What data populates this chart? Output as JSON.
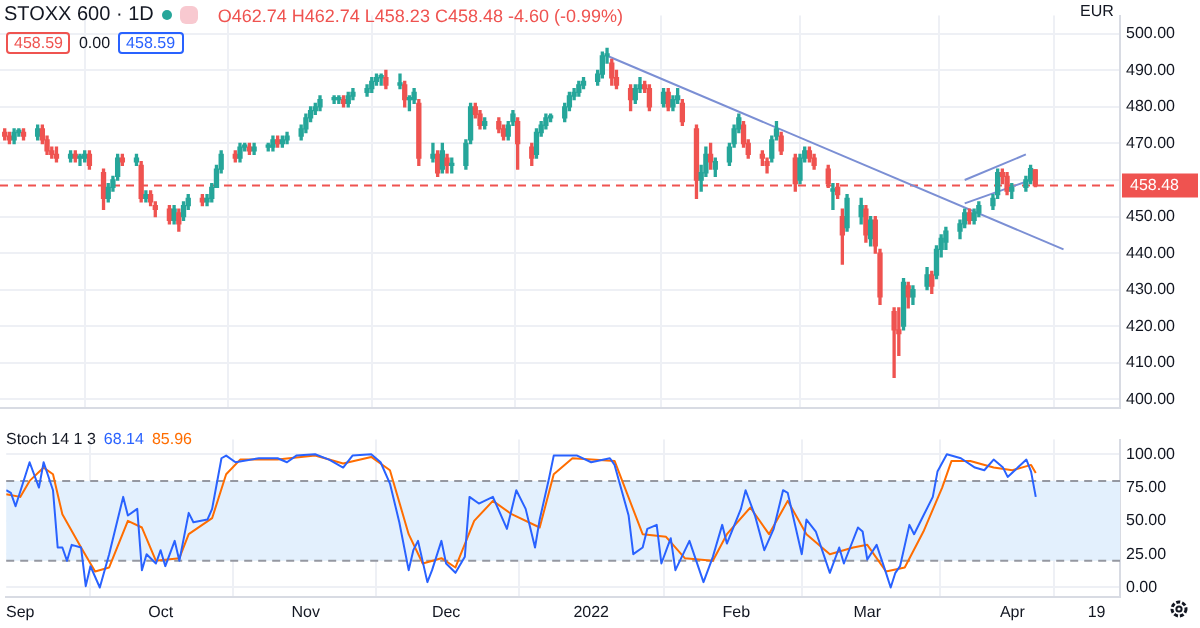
{
  "chart_data": [
    {
      "type": "candlestick",
      "title": "STOXX 600 · 1D",
      "annotations": [
        "O462.74 H462.74 L458.23 C458.48 -4.60 (-0.99%)",
        "458.59",
        "0.00",
        "458.59",
        "EUR"
      ],
      "x": [
        "2021-08-30",
        "2021-08-31",
        "2021-09-01",
        "2021-09-02",
        "2021-09-03",
        "2021-09-06",
        "2021-09-07",
        "2021-09-08",
        "2021-09-09",
        "2021-09-10",
        "2021-09-13",
        "2021-09-14",
        "2021-09-15",
        "2021-09-16",
        "2021-09-17",
        "2021-09-20",
        "2021-09-21",
        "2021-09-22",
        "2021-09-23",
        "2021-09-24",
        "2021-09-27",
        "2021-09-28",
        "2021-09-29",
        "2021-09-30",
        "2021-10-01",
        "2021-10-04",
        "2021-10-05",
        "2021-10-06",
        "2021-10-07",
        "2021-10-08",
        "2021-10-11",
        "2021-10-12",
        "2021-10-13",
        "2021-10-14",
        "2021-10-15",
        "2021-10-18",
        "2021-10-19",
        "2021-10-20",
        "2021-10-21",
        "2021-10-22",
        "2021-10-25",
        "2021-10-26",
        "2021-10-27",
        "2021-10-28",
        "2021-10-29",
        "2021-11-01",
        "2021-11-02",
        "2021-11-03",
        "2021-11-04",
        "2021-11-05",
        "2021-11-08",
        "2021-11-09",
        "2021-11-10",
        "2021-11-11",
        "2021-11-12",
        "2021-11-15",
        "2021-11-16",
        "2021-11-17",
        "2021-11-18",
        "2021-11-19",
        "2021-11-22",
        "2021-11-23",
        "2021-11-24",
        "2021-11-25",
        "2021-11-26",
        "2021-11-29",
        "2021-11-30",
        "2021-12-01",
        "2021-12-02",
        "2021-12-03",
        "2021-12-06",
        "2021-12-07",
        "2021-12-08",
        "2021-12-09",
        "2021-12-10",
        "2021-12-13",
        "2021-12-14",
        "2021-12-15",
        "2021-12-16",
        "2021-12-17",
        "2021-12-20",
        "2021-12-21",
        "2021-12-22",
        "2021-12-23",
        "2021-12-24",
        "2021-12-27",
        "2021-12-28",
        "2021-12-29",
        "2021-12-30",
        "2021-12-31",
        "2022-01-03",
        "2022-01-04",
        "2022-01-05",
        "2022-01-06",
        "2022-01-07",
        "2022-01-10",
        "2022-01-11",
        "2022-01-12",
        "2022-01-13",
        "2022-01-14",
        "2022-01-17",
        "2022-01-18",
        "2022-01-19",
        "2022-01-20",
        "2022-01-21",
        "2022-01-24",
        "2022-01-25",
        "2022-01-26",
        "2022-01-27",
        "2022-01-28",
        "2022-01-31",
        "2022-02-01",
        "2022-02-02",
        "2022-02-03",
        "2022-02-04",
        "2022-02-07",
        "2022-02-08",
        "2022-02-09",
        "2022-02-10",
        "2022-02-11",
        "2022-02-14",
        "2022-02-15",
        "2022-02-16",
        "2022-02-17",
        "2022-02-18",
        "2022-02-21",
        "2022-02-22",
        "2022-02-23",
        "2022-02-24",
        "2022-02-25",
        "2022-02-28",
        "2022-03-01",
        "2022-03-02",
        "2022-03-03",
        "2022-03-04",
        "2022-03-07",
        "2022-03-08",
        "2022-03-09",
        "2022-03-10",
        "2022-03-11",
        "2022-03-14",
        "2022-03-15",
        "2022-03-16",
        "2022-03-17",
        "2022-03-18",
        "2022-03-21",
        "2022-03-22",
        "2022-03-23",
        "2022-03-24",
        "2022-03-25",
        "2022-03-28",
        "2022-03-29",
        "2022-03-30",
        "2022-03-31",
        "2022-04-01",
        "2022-04-04",
        "2022-04-05",
        "2022-04-06"
      ],
      "ohlc": [
        [
          473,
          474,
          471,
          472
        ],
        [
          472,
          473,
          470,
          471
        ],
        [
          471,
          474,
          470,
          473
        ],
        [
          473,
          474,
          472,
          473
        ],
        [
          473,
          474,
          471,
          472
        ],
        [
          472,
          475,
          471,
          474
        ],
        [
          474,
          475,
          470,
          471
        ],
        [
          471,
          472,
          467,
          468
        ],
        [
          468,
          469,
          466,
          467
        ],
        [
          467,
          469,
          465,
          466
        ],
        [
          466,
          468,
          465,
          467
        ],
        [
          467,
          468,
          465,
          466
        ],
        [
          466,
          467,
          464,
          466
        ],
        [
          466,
          468,
          465,
          467
        ],
        [
          467,
          468,
          463,
          464
        ],
        [
          462,
          463,
          452,
          455
        ],
        [
          455,
          459,
          454,
          458
        ],
        [
          458,
          461,
          457,
          460
        ],
        [
          461,
          467,
          460,
          466
        ],
        [
          466,
          467,
          464,
          465
        ],
        [
          465,
          467,
          464,
          466
        ],
        [
          464,
          465,
          454,
          455
        ],
        [
          455,
          457,
          454,
          456
        ],
        [
          456,
          457,
          453,
          454
        ],
        [
          453,
          454,
          450,
          452
        ],
        [
          452,
          453,
          448,
          449
        ],
        [
          449,
          453,
          448,
          452
        ],
        [
          451,
          452,
          446,
          448
        ],
        [
          450,
          454,
          449,
          453
        ],
        [
          453,
          456,
          452,
          455
        ],
        [
          455,
          456,
          453,
          454
        ],
        [
          454,
          456,
          453,
          455
        ],
        [
          455,
          459,
          454,
          458
        ],
        [
          458,
          464,
          458,
          463
        ],
        [
          463,
          468,
          462,
          467
        ],
        [
          467,
          468,
          465,
          466
        ],
        [
          466,
          470,
          465,
          469
        ],
        [
          469,
          470,
          468,
          469
        ],
        [
          469,
          470,
          467,
          468
        ],
        [
          468,
          470,
          467,
          469
        ],
        [
          469,
          470,
          468,
          469
        ],
        [
          469,
          472,
          468,
          471
        ],
        [
          471,
          472,
          469,
          470
        ],
        [
          470,
          472,
          469,
          471
        ],
        [
          471,
          473,
          470,
          472
        ],
        [
          472,
          475,
          471,
          474
        ],
        [
          474,
          478,
          473,
          477
        ],
        [
          477,
          480,
          476,
          479
        ],
        [
          479,
          481,
          478,
          480
        ],
        [
          480,
          483,
          479,
          482
        ],
        [
          482,
          483,
          481,
          482
        ],
        [
          482,
          483,
          481,
          482
        ],
        [
          482,
          483,
          480,
          481
        ],
        [
          481,
          484,
          480,
          483
        ],
        [
          483,
          485,
          482,
          484
        ],
        [
          484,
          486,
          483,
          485
        ],
        [
          485,
          488,
          484,
          487
        ],
        [
          487,
          489,
          486,
          488
        ],
        [
          488,
          489,
          486,
          488
        ],
        [
          488,
          490,
          485,
          486
        ],
        [
          486,
          489,
          485,
          486
        ],
        [
          486,
          487,
          480,
          482
        ],
        [
          482,
          483,
          479,
          482
        ],
        [
          482,
          485,
          481,
          484
        ],
        [
          481,
          482,
          464,
          466
        ],
        [
          466,
          470,
          465,
          467
        ],
        [
          467,
          468,
          461,
          462
        ],
        [
          463,
          470,
          462,
          468
        ],
        [
          466,
          467,
          462,
          464
        ],
        [
          464,
          466,
          462,
          464
        ],
        [
          464,
          471,
          463,
          470
        ],
        [
          471,
          481,
          470,
          480
        ],
        [
          480,
          481,
          477,
          478
        ],
        [
          478,
          479,
          474,
          475
        ],
        [
          475,
          477,
          474,
          476
        ],
        [
          476,
          477,
          473,
          474
        ],
        [
          474,
          475,
          471,
          472
        ],
        [
          472,
          476,
          471,
          475
        ],
        [
          476,
          479,
          475,
          478
        ],
        [
          476,
          477,
          463,
          470
        ],
        [
          469,
          470,
          464,
          466
        ],
        [
          467,
          474,
          466,
          473
        ],
        [
          473,
          476,
          472,
          475
        ],
        [
          475,
          478,
          474,
          477
        ],
        [
          477,
          478,
          476,
          477
        ],
        [
          477,
          481,
          476,
          480
        ],
        [
          480,
          484,
          479,
          483
        ],
        [
          483,
          485,
          482,
          484
        ],
        [
          484,
          487,
          483,
          486
        ],
        [
          486,
          488,
          485,
          487
        ],
        [
          487,
          490,
          486,
          489
        ],
        [
          489,
          495,
          488,
          494
        ],
        [
          494,
          496,
          492,
          494
        ],
        [
          492,
          493,
          486,
          488
        ],
        [
          488,
          490,
          485,
          486
        ],
        [
          485,
          486,
          479,
          482
        ],
        [
          482,
          486,
          481,
          485
        ],
        [
          485,
          488,
          484,
          486
        ],
        [
          486,
          487,
          484,
          485
        ],
        [
          485,
          486,
          479,
          480
        ],
        [
          481,
          485,
          480,
          484
        ],
        [
          484,
          485,
          479,
          480
        ],
        [
          480,
          483,
          479,
          482
        ],
        [
          482,
          485,
          481,
          483
        ],
        [
          481,
          482,
          475,
          476
        ],
        [
          474,
          475,
          455,
          460
        ],
        [
          460,
          464,
          457,
          462
        ],
        [
          462,
          469,
          461,
          467
        ],
        [
          467,
          470,
          463,
          465
        ],
        [
          463,
          466,
          461,
          465
        ],
        [
          465,
          470,
          464,
          469
        ],
        [
          470,
          475,
          469,
          474
        ],
        [
          474,
          478,
          473,
          477
        ],
        [
          475,
          476,
          469,
          470
        ],
        [
          470,
          471,
          466,
          467
        ],
        [
          467,
          468,
          464,
          466
        ],
        [
          465,
          466,
          462,
          464
        ],
        [
          466,
          472,
          465,
          471
        ],
        [
          472,
          476,
          471,
          474
        ],
        [
          472,
          473,
          467,
          468
        ],
        [
          466,
          467,
          457,
          459
        ],
        [
          460,
          467,
          459,
          466
        ],
        [
          466,
          469,
          465,
          468
        ],
        [
          468,
          469,
          465,
          466
        ],
        [
          466,
          467,
          463,
          464
        ],
        [
          463,
          464,
          458,
          459
        ],
        [
          457,
          459,
          452,
          457
        ],
        [
          458,
          459,
          455,
          456
        ],
        [
          450,
          452,
          437,
          445
        ],
        [
          447,
          456,
          446,
          455
        ],
        [
          450,
          455,
          448,
          453
        ],
        [
          452,
          453,
          443,
          445
        ],
        [
          444,
          450,
          442,
          449
        ],
        [
          449,
          450,
          440,
          442
        ],
        [
          440,
          441,
          426,
          428
        ],
        [
          424,
          425,
          406,
          419
        ],
        [
          419,
          425,
          412,
          418
        ],
        [
          420,
          433,
          419,
          432
        ],
        [
          431,
          432,
          425,
          428
        ],
        [
          428,
          431,
          426,
          430
        ],
        [
          431,
          436,
          430,
          434
        ],
        [
          434,
          435,
          429,
          431
        ],
        [
          434,
          442,
          433,
          441
        ],
        [
          441,
          445,
          439,
          444
        ],
        [
          443,
          447,
          441,
          446
        ],
        [
          446,
          449,
          444,
          448
        ],
        [
          448,
          452,
          447,
          451
        ],
        [
          451,
          452,
          448,
          449
        ],
        [
          449,
          452,
          448,
          451
        ],
        [
          451,
          454,
          450,
          453
        ],
        [
          453,
          456,
          452,
          455
        ],
        [
          456,
          463,
          455,
          462
        ],
        [
          462,
          463,
          459,
          461
        ],
        [
          461,
          462,
          456,
          457
        ],
        [
          457,
          459,
          455,
          458
        ],
        [
          458,
          461,
          457,
          460
        ],
        [
          460,
          464,
          459,
          463.08
        ],
        [
          462.74,
          462.74,
          458.23,
          458.48
        ]
      ],
      "series": [
        {
          "type": "line",
          "color": "#7b8fd4",
          "x": [
            "2022-01-05",
            "2022-04-12"
          ],
          "values": [
            494,
            441
          ]
        },
        {
          "type": "line",
          "color": "#7b8fd4",
          "x": [
            "2022-03-22",
            "2022-04-04"
          ],
          "values": [
            460,
            467
          ]
        },
        {
          "type": "line",
          "color": "#7b8fd4",
          "x": [
            "2022-03-22",
            "2022-04-05"
          ],
          "values": [
            453.6,
            460
          ]
        }
      ],
      "xlim": [
        "2021-08-29",
        "2022-04-24"
      ],
      "xticks": [
        {
          "value": "2021-09-01",
          "label": null
        },
        {
          "value": "2021-10-01",
          "label": null
        },
        {
          "value": "2021-11-01",
          "label": null
        },
        {
          "value": "2021-12-01",
          "label": null
        },
        {
          "value": "2022-01-01",
          "label": null
        },
        {
          "value": "2022-02-01",
          "label": null
        },
        {
          "value": "2022-03-01",
          "label": null
        },
        {
          "value": "2022-04-01",
          "label": null
        },
        {
          "value": "2022-04-19",
          "label": null
        }
      ],
      "ylim": [
        397.5,
        505
      ],
      "yticks": [
        {
          "value": 400,
          "label": "400.00"
        },
        {
          "value": 410,
          "label": "410.00"
        },
        {
          "value": 420,
          "label": "420.00"
        },
        {
          "value": 430,
          "label": "430.00"
        },
        {
          "value": 440,
          "label": "440.00"
        },
        {
          "value": 450,
          "label": "450.00"
        },
        {
          "value": 460,
          "label": null
        },
        {
          "value": 470,
          "label": "470.00"
        },
        {
          "value": 480,
          "label": "480.00"
        },
        {
          "value": 490,
          "label": "490.00"
        },
        {
          "value": 500,
          "label": "500.00"
        }
      ],
      "ref_lines": [
        {
          "axis": "y",
          "value": 458.48,
          "label": "458.48",
          "color": "#ef5350",
          "line_style": "dashed"
        }
      ],
      "grid": true,
      "tick_labels": "y"
    },
    {
      "type": "line",
      "title": "Stoch 14 1 3",
      "annotations": [
        "68.14",
        "85.96"
      ],
      "series": [
        {
          "color": "#2962ff",
          "x": [
            "2021-08-29",
            "2021-08-30",
            "2021-08-31",
            "2021-09-03",
            "2021-09-05",
            "2021-09-06",
            "2021-09-08",
            "2021-09-09",
            "2021-09-10",
            "2021-09-11",
            "2021-09-12",
            "2021-09-14",
            "2021-09-15",
            "2021-09-16",
            "2021-09-18",
            "2021-09-20",
            "2021-09-23",
            "2021-09-24",
            "2021-09-26",
            "2021-09-27",
            "2021-09-28",
            "2021-09-30",
            "2021-10-01",
            "2021-10-02",
            "2021-10-04",
            "2021-10-05",
            "2021-10-07",
            "2021-10-08",
            "2021-10-11",
            "2021-10-12",
            "2021-10-14",
            "2021-10-15",
            "2021-10-17",
            "2021-10-22",
            "2021-10-26",
            "2021-10-28",
            "2021-10-30",
            "2021-11-03",
            "2021-11-06",
            "2021-11-09",
            "2021-11-11",
            "2021-11-15",
            "2021-11-17",
            "2021-11-19",
            "2021-11-21",
            "2021-11-23",
            "2021-11-24",
            "2021-11-25",
            "2021-11-27",
            "2021-11-28",
            "2021-11-30",
            "2021-12-01",
            "2021-12-03",
            "2021-12-05",
            "2021-12-06",
            "2021-12-08",
            "2021-12-11",
            "2021-12-14",
            "2021-12-16",
            "2021-12-18",
            "2021-12-20",
            "2021-12-21",
            "2021-12-23",
            "2021-12-24",
            "2021-12-27",
            "2021-12-29",
            "2022-01-01",
            "2022-01-05",
            "2022-01-06",
            "2022-01-09",
            "2022-01-10",
            "2022-01-12",
            "2022-01-13",
            "2022-01-15",
            "2022-01-16",
            "2022-01-18",
            "2022-01-19",
            "2022-01-22",
            "2022-01-25",
            "2022-01-27",
            "2022-01-29",
            "2022-01-30",
            "2022-02-02",
            "2022-02-03",
            "2022-02-05",
            "2022-02-07",
            "2022-02-09",
            "2022-02-11",
            "2022-02-12",
            "2022-02-15",
            "2022-02-16",
            "2022-02-18",
            "2022-02-21",
            "2022-02-23",
            "2022-02-24",
            "2022-02-27",
            "2022-02-28",
            "2022-03-01",
            "2022-03-03",
            "2022-03-05",
            "2022-03-06",
            "2022-03-07",
            "2022-03-08",
            "2022-03-10",
            "2022-03-11",
            "2022-03-13",
            "2022-03-15",
            "2022-03-16",
            "2022-03-18",
            "2022-03-21",
            "2022-03-24",
            "2022-03-26",
            "2022-03-28",
            "2022-03-30",
            "2022-03-31",
            "2022-04-04",
            "2022-04-05",
            "2022-04-06"
          ],
          "values": [
            73,
            71,
            61,
            94,
            75,
            94,
            73,
            30,
            30,
            20,
            32,
            30,
            1,
            16,
            0,
            25,
            68,
            54,
            59,
            13,
            25,
            18,
            28,
            16,
            35,
            20,
            56,
            49,
            51,
            59,
            97,
            99,
            94,
            97,
            97,
            94,
            99,
            100,
            96,
            90,
            99,
            100,
            94,
            78,
            49,
            13,
            28,
            35,
            4,
            13,
            35,
            18,
            11,
            23,
            68,
            63,
            68,
            44,
            73,
            59,
            30,
            51,
            82,
            99,
            99,
            99,
            94,
            97,
            92,
            54,
            25,
            30,
            44,
            47,
            18,
            37,
            13,
            35,
            4,
            23,
            47,
            33,
            59,
            73,
            54,
            28,
            44,
            73,
            71,
            25,
            51,
            42,
            11,
            30,
            18,
            45,
            42,
            21,
            32,
            11,
            0,
            11,
            16,
            47,
            40,
            54,
            68,
            87,
            100,
            97,
            90,
            88,
            96,
            90,
            83,
            96,
            87,
            68
          ]
        },
        {
          "color": "#ff6d00",
          "x": [
            "2021-08-29",
            "2021-09-01",
            "2021-09-03",
            "2021-09-06",
            "2021-09-08",
            "2021-09-10",
            "2021-09-14",
            "2021-09-17",
            "2021-09-20",
            "2021-09-24",
            "2021-09-27",
            "2021-09-30",
            "2021-10-05",
            "2021-10-07",
            "2021-10-12",
            "2021-10-15",
            "2021-10-18",
            "2021-10-26",
            "2021-11-03",
            "2021-11-09",
            "2021-11-15",
            "2021-11-19",
            "2021-11-23",
            "2021-11-26",
            "2021-11-30",
            "2021-12-03",
            "2021-12-07",
            "2021-12-11",
            "2021-12-15",
            "2021-12-21",
            "2021-12-24",
            "2021-12-28",
            "2022-01-06",
            "2022-01-12",
            "2022-01-17",
            "2022-01-21",
            "2022-01-27",
            "2022-01-30",
            "2022-02-04",
            "2022-02-08",
            "2022-02-12",
            "2022-02-16",
            "2022-02-21",
            "2022-02-26",
            "2022-03-01",
            "2022-03-05",
            "2022-03-09",
            "2022-03-13",
            "2022-03-17",
            "2022-03-19",
            "2022-03-23",
            "2022-03-28",
            "2022-04-01",
            "2022-04-05",
            "2022-04-06"
          ],
          "values": [
            70,
            68,
            80,
            90,
            85,
            55,
            30,
            12,
            15,
            50,
            45,
            20,
            22,
            40,
            52,
            85,
            96,
            96,
            99,
            93,
            98,
            88,
            40,
            18,
            22,
            15,
            50,
            65,
            55,
            45,
            85,
            97,
            95,
            40,
            38,
            22,
            20,
            40,
            60,
            40,
            65,
            40,
            25,
            30,
            32,
            12,
            15,
            42,
            75,
            95,
            95,
            90,
            88,
            92,
            86
          ]
        }
      ],
      "xlim": [
        "2021-08-29",
        "2022-04-24"
      ],
      "xticks": [
        {
          "value": "2021-09-01",
          "label": "Sep"
        },
        {
          "value": "2021-10-01",
          "label": "Oct"
        },
        {
          "value": "2021-11-01",
          "label": "Nov"
        },
        {
          "value": "2021-12-01",
          "label": "Dec"
        },
        {
          "value": "2022-01-01",
          "label": "2022"
        },
        {
          "value": "2022-02-01",
          "label": "Feb"
        },
        {
          "value": "2022-03-01",
          "label": "Mar"
        },
        {
          "value": "2022-04-01",
          "label": "Apr"
        },
        {
          "value": "2022-04-19",
          "label": "19"
        }
      ],
      "ylim": [
        -7,
        111
      ],
      "yticks": [
        {
          "value": 0,
          "label": "0.00"
        },
        {
          "value": 25,
          "label": "25.00"
        },
        {
          "value": 50,
          "label": "50.00"
        },
        {
          "value": 75,
          "label": "75.00"
        },
        {
          "value": 100,
          "label": "100.00"
        }
      ],
      "bands": [
        {
          "axis": "y",
          "from": 20,
          "to": 80,
          "color": "#e3f0fd"
        }
      ],
      "ref_lines": [
        {
          "axis": "y",
          "value": 80,
          "color": "#9598a1",
          "line_style": "dashed"
        },
        {
          "axis": "y",
          "value": 20,
          "color": "#9598a1",
          "line_style": "dashed"
        }
      ],
      "grid": true
    }
  ]
}
